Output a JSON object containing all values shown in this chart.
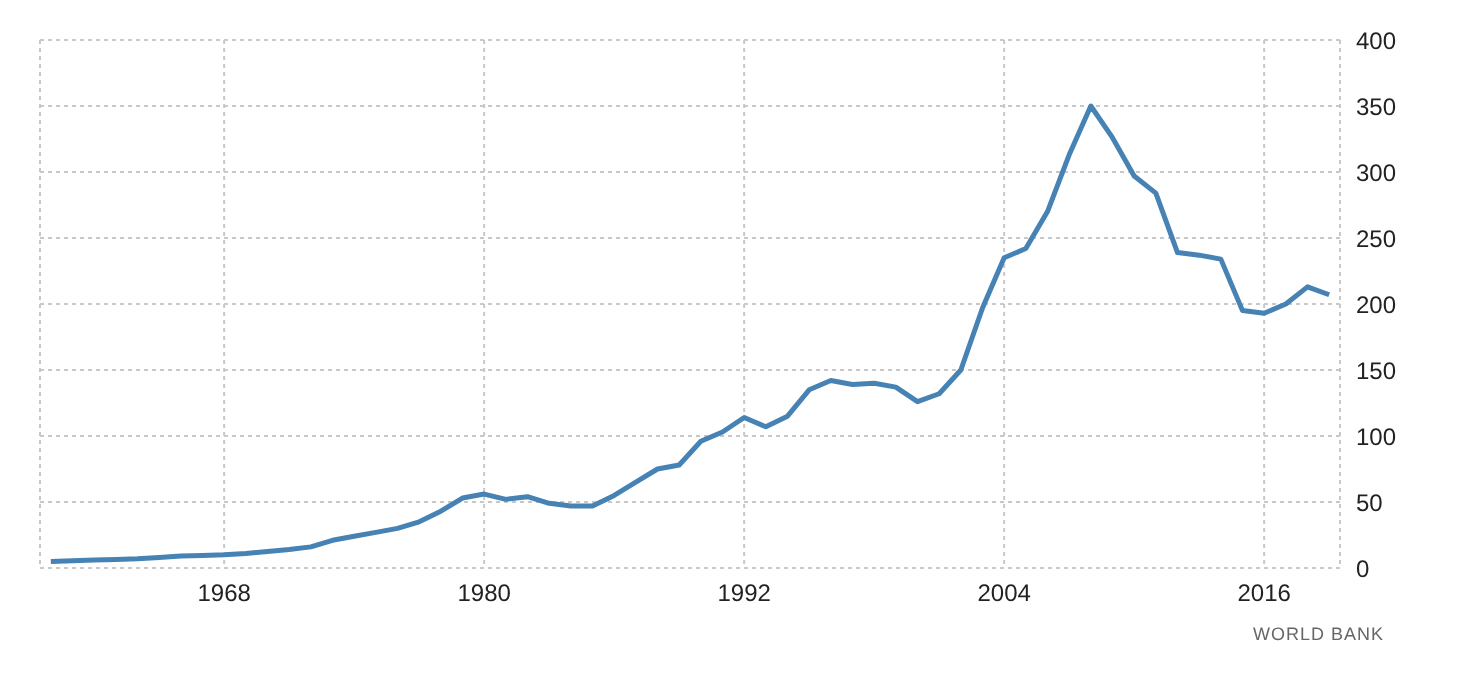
{
  "chart_data": {
    "type": "line",
    "x": [
      1960,
      1961,
      1962,
      1963,
      1964,
      1965,
      1966,
      1967,
      1968,
      1969,
      1970,
      1971,
      1972,
      1973,
      1974,
      1975,
      1976,
      1977,
      1978,
      1979,
      1980,
      1981,
      1982,
      1983,
      1984,
      1985,
      1986,
      1987,
      1988,
      1989,
      1990,
      1991,
      1992,
      1993,
      1994,
      1995,
      1996,
      1997,
      1998,
      1999,
      2000,
      2001,
      2002,
      2003,
      2004,
      2005,
      2006,
      2007,
      2008,
      2009,
      2010,
      2011,
      2012,
      2013,
      2014,
      2015,
      2016,
      2017,
      2018,
      2019
    ],
    "series": [
      {
        "color": "#4682b4",
        "values": [
          5,
          5.5,
          6,
          6.5,
          7,
          8,
          9,
          9.5,
          10,
          11,
          12.5,
          14,
          16,
          21,
          24,
          27,
          30,
          35,
          43,
          53,
          56,
          52,
          54,
          49,
          47,
          47,
          55,
          65,
          75,
          78,
          96,
          103,
          114,
          107,
          115,
          135,
          142,
          139,
          140,
          137,
          126,
          132,
          150,
          197,
          235,
          242,
          270,
          313,
          350,
          326,
          297,
          284,
          239,
          237,
          234,
          195,
          193,
          200,
          213,
          207
        ]
      }
    ],
    "xlim": [
      1959.5,
      2019.5
    ],
    "xticks": [
      1968,
      1980,
      1992,
      2004,
      2016
    ],
    "ylim": [
      0,
      400
    ],
    "yticks": [
      0,
      50,
      100,
      150,
      200,
      250,
      300,
      350,
      400
    ],
    "grid": true,
    "annotations": [
      "WORLD BANK"
    ]
  }
}
